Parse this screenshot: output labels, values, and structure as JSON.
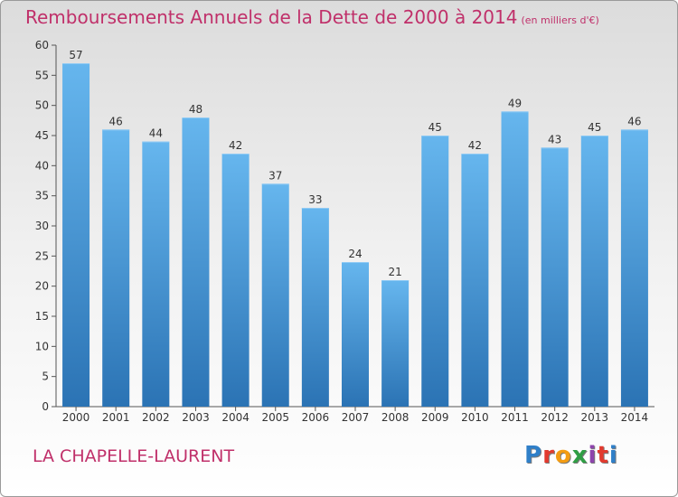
{
  "header": {
    "title": "Remboursements Annuels de la Dette de 2000 à 2014",
    "unit": "(en milliers d'€)"
  },
  "footer": {
    "place": "LA CHAPELLE-LAURENT",
    "logo": {
      "letters": [
        "P",
        "r",
        "o",
        "x",
        "i",
        "t",
        "i"
      ]
    }
  },
  "colors": {
    "bar_light": "#66b6ee",
    "bar_dark": "#2b73b4",
    "title": "#c0306a",
    "logo": [
      "#2f7fc8",
      "#e23a2e",
      "#f39c12",
      "#2f9e44",
      "#8e44ad",
      "#e23a2e",
      "#2f7fc8"
    ]
  },
  "chart_data": {
    "type": "bar",
    "title": "Remboursements Annuels de la Dette de 2000 à 2014",
    "subtitle": "(en milliers d'€)",
    "xlabel": "",
    "ylabel": "",
    "ylim": [
      0,
      60
    ],
    "yticks": [
      0,
      5,
      10,
      15,
      20,
      25,
      30,
      35,
      40,
      45,
      50,
      55,
      60
    ],
    "grid": false,
    "categories": [
      "2000",
      "2001",
      "2002",
      "2003",
      "2004",
      "2005",
      "2006",
      "2007",
      "2008",
      "2009",
      "2010",
      "2011",
      "2012",
      "2013",
      "2014"
    ],
    "values": [
      57,
      46,
      44,
      48,
      42,
      37,
      33,
      24,
      21,
      45,
      42,
      49,
      43,
      45,
      46
    ]
  }
}
